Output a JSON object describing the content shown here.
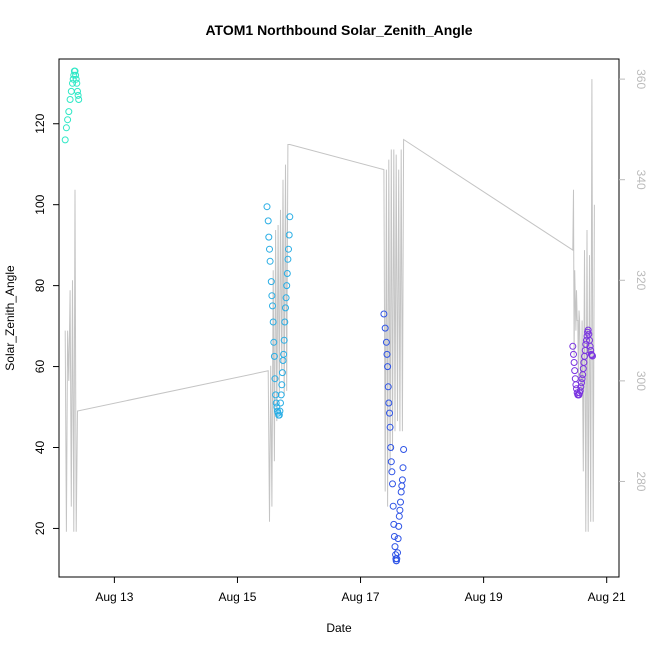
{
  "chart_data": {
    "type": "scatter",
    "title": "ATOM1 Northbound Solar_Zenith_Angle",
    "xlabel": "Date",
    "ylabel": "Solar_Zenith_Angle",
    "x_unit": "days since Aug 12 00:00",
    "xlim": [
      0.1,
      9.2
    ],
    "ylim": [
      8,
      136
    ],
    "x_ticks": [
      {
        "value": 1,
        "label": "Aug 13"
      },
      {
        "value": 3,
        "label": "Aug 15"
      },
      {
        "value": 5,
        "label": "Aug 17"
      },
      {
        "value": 7,
        "label": "Aug 19"
      },
      {
        "value": 9,
        "label": "Aug 21"
      }
    ],
    "y_ticks": [
      20,
      40,
      60,
      80,
      100,
      120
    ],
    "secondary_axis": {
      "ylim": [
        261,
        364
      ],
      "ticks": [
        280,
        300,
        320,
        340,
        360
      ],
      "color": "#bbbbbb"
    },
    "series": [
      {
        "color": "#2ee8c6",
        "points": [
          [
            0.2,
            116
          ],
          [
            0.22,
            119
          ],
          [
            0.24,
            121
          ],
          [
            0.26,
            123
          ],
          [
            0.28,
            126
          ],
          [
            0.3,
            128
          ],
          [
            0.32,
            130
          ],
          [
            0.33,
            131
          ],
          [
            0.34,
            132
          ],
          [
            0.35,
            133
          ],
          [
            0.36,
            133
          ],
          [
            0.37,
            132
          ],
          [
            0.38,
            131
          ],
          [
            0.39,
            130
          ],
          [
            0.4,
            128
          ],
          [
            0.41,
            127
          ],
          [
            0.42,
            126
          ]
        ]
      },
      {
        "color": "#2aaee5",
        "points": [
          [
            3.48,
            99.5
          ],
          [
            3.5,
            96
          ],
          [
            3.51,
            92
          ],
          [
            3.52,
            89
          ],
          [
            3.53,
            86
          ],
          [
            3.55,
            81
          ],
          [
            3.56,
            77.5
          ],
          [
            3.57,
            75
          ],
          [
            3.58,
            71
          ],
          [
            3.59,
            66
          ],
          [
            3.6,
            62.5
          ],
          [
            3.61,
            57
          ],
          [
            3.62,
            53
          ],
          [
            3.63,
            51
          ],
          [
            3.64,
            50
          ],
          [
            3.65,
            49
          ],
          [
            3.66,
            48.5
          ],
          [
            3.67,
            48
          ],
          [
            3.68,
            48
          ],
          [
            3.69,
            49
          ],
          [
            3.7,
            51
          ],
          [
            3.71,
            53
          ],
          [
            3.72,
            55.5
          ],
          [
            3.73,
            58.5
          ],
          [
            3.74,
            61.5
          ],
          [
            3.75,
            63
          ],
          [
            3.76,
            66.5
          ],
          [
            3.77,
            71
          ],
          [
            3.78,
            74.5
          ],
          [
            3.79,
            77
          ],
          [
            3.8,
            80
          ],
          [
            3.81,
            83
          ],
          [
            3.82,
            86.5
          ],
          [
            3.83,
            89
          ],
          [
            3.84,
            92.5
          ],
          [
            3.85,
            97
          ]
        ]
      },
      {
        "color": "#2f54e6",
        "points": [
          [
            5.38,
            73
          ],
          [
            5.4,
            69.5
          ],
          [
            5.42,
            66
          ],
          [
            5.43,
            63
          ],
          [
            5.44,
            60
          ],
          [
            5.45,
            55
          ],
          [
            5.46,
            51
          ],
          [
            5.47,
            48.5
          ],
          [
            5.48,
            45
          ],
          [
            5.49,
            40
          ],
          [
            5.5,
            36.5
          ],
          [
            5.51,
            34
          ],
          [
            5.52,
            31
          ],
          [
            5.53,
            25.5
          ],
          [
            5.54,
            21
          ],
          [
            5.55,
            18
          ],
          [
            5.56,
            15.5
          ],
          [
            5.57,
            13.5
          ],
          [
            5.575,
            12.5
          ],
          [
            5.58,
            12
          ],
          [
            5.585,
            12
          ],
          [
            5.59,
            12.5
          ],
          [
            5.6,
            14
          ],
          [
            5.61,
            17.5
          ],
          [
            5.62,
            20.5
          ],
          [
            5.63,
            23
          ],
          [
            5.64,
            24.5
          ],
          [
            5.65,
            26.5
          ],
          [
            5.66,
            29
          ],
          [
            5.67,
            30.5
          ],
          [
            5.68,
            32
          ],
          [
            5.69,
            35
          ],
          [
            5.7,
            39.5
          ]
        ]
      },
      {
        "color": "#7a34e0",
        "points": [
          [
            8.45,
            65
          ],
          [
            8.46,
            63
          ],
          [
            8.47,
            61
          ],
          [
            8.48,
            59
          ],
          [
            8.49,
            57
          ],
          [
            8.5,
            55.5
          ],
          [
            8.51,
            54.5
          ],
          [
            8.52,
            53.5
          ],
          [
            8.53,
            53
          ],
          [
            8.54,
            53
          ],
          [
            8.55,
            53
          ],
          [
            8.56,
            53.5
          ],
          [
            8.57,
            54
          ],
          [
            8.58,
            55
          ],
          [
            8.59,
            56
          ],
          [
            8.6,
            57
          ],
          [
            8.61,
            58
          ],
          [
            8.62,
            59.5
          ],
          [
            8.63,
            61
          ],
          [
            8.64,
            62.5
          ],
          [
            8.65,
            64
          ],
          [
            8.66,
            65.5
          ],
          [
            8.67,
            66.5
          ],
          [
            8.68,
            67.5
          ],
          [
            8.69,
            68.5
          ],
          [
            8.7,
            69
          ],
          [
            8.71,
            68
          ],
          [
            8.72,
            66.5
          ],
          [
            8.73,
            65
          ],
          [
            8.74,
            64
          ],
          [
            8.75,
            63
          ],
          [
            8.76,
            62.8
          ],
          [
            8.77,
            62.6
          ]
        ]
      }
    ],
    "secondary_line": {
      "color": "#c4c4c4",
      "points": [
        [
          0.2,
          310
        ],
        [
          0.22,
          270
        ],
        [
          0.24,
          310
        ],
        [
          0.26,
          300
        ],
        [
          0.28,
          318
        ],
        [
          0.3,
          275
        ],
        [
          0.32,
          320
        ],
        [
          0.34,
          270
        ],
        [
          0.36,
          338
        ],
        [
          0.38,
          270
        ],
        [
          0.4,
          294
        ],
        [
          3.5,
          302
        ],
        [
          3.52,
          272
        ],
        [
          3.54,
          303
        ],
        [
          3.56,
          275
        ],
        [
          3.58,
          322
        ],
        [
          3.6,
          284
        ],
        [
          3.62,
          330
        ],
        [
          3.64,
          292
        ],
        [
          3.66,
          331
        ],
        [
          3.68,
          297
        ],
        [
          3.7,
          334
        ],
        [
          3.72,
          302
        ],
        [
          3.74,
          340
        ],
        [
          3.76,
          297
        ],
        [
          3.78,
          343
        ],
        [
          3.8,
          298
        ],
        [
          3.82,
          347
        ],
        [
          3.85,
          347
        ],
        [
          5.38,
          342
        ],
        [
          5.4,
          278
        ],
        [
          5.42,
          342
        ],
        [
          5.44,
          275
        ],
        [
          5.46,
          344
        ],
        [
          5.48,
          282
        ],
        [
          5.5,
          346
        ],
        [
          5.52,
          286
        ],
        [
          5.54,
          346
        ],
        [
          5.56,
          290
        ],
        [
          5.58,
          345
        ],
        [
          5.6,
          292
        ],
        [
          5.62,
          342
        ],
        [
          5.64,
          290
        ],
        [
          5.66,
          346
        ],
        [
          5.68,
          290
        ],
        [
          5.7,
          348
        ],
        [
          8.45,
          326
        ],
        [
          8.46,
          338
        ],
        [
          8.47,
          305
        ],
        [
          8.48,
          322
        ],
        [
          8.49,
          316
        ],
        [
          8.5,
          310
        ],
        [
          8.51,
          318
        ],
        [
          8.52,
          312
        ],
        [
          8.53,
          312
        ],
        [
          8.54,
          300
        ],
        [
          8.55,
          314
        ],
        [
          8.56,
          312
        ],
        [
          8.57,
          305
        ],
        [
          8.58,
          298
        ],
        [
          8.59,
          300
        ],
        [
          8.6,
          312
        ],
        [
          8.62,
          282
        ],
        [
          8.64,
          326
        ],
        [
          8.66,
          270
        ],
        [
          8.68,
          330
        ],
        [
          8.7,
          270
        ],
        [
          8.72,
          325
        ],
        [
          8.74,
          272
        ],
        [
          8.76,
          360
        ],
        [
          8.78,
          272
        ],
        [
          8.8,
          335
        ]
      ]
    }
  }
}
